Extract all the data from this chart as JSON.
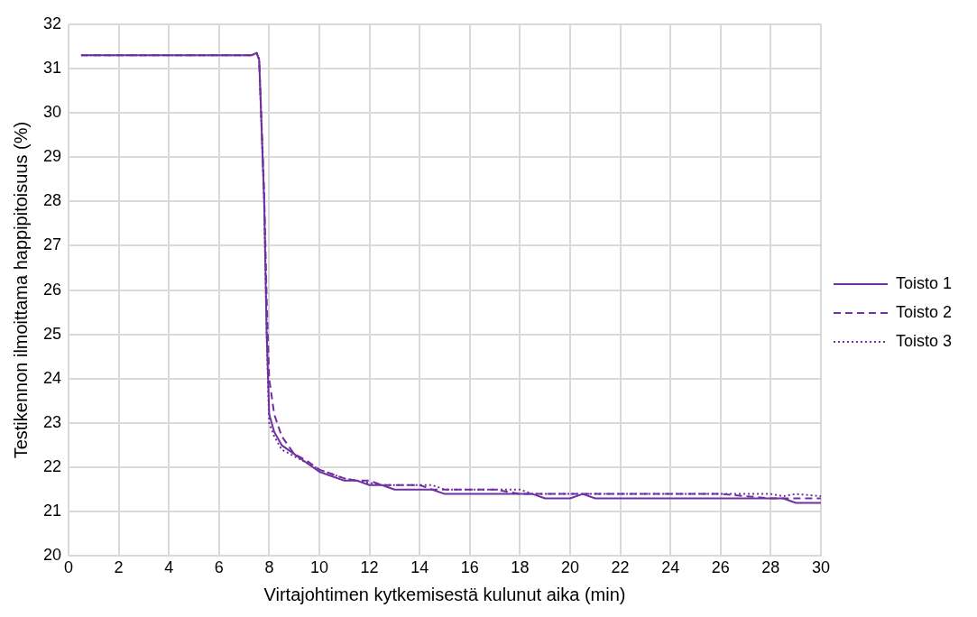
{
  "chart_data": {
    "type": "line",
    "xlabel": "Virtajohtimen kytkemisestä kulunut aika (min)",
    "ylabel": "Testikennon ilmoittama happipitoisuus (%)",
    "x": [
      0.5,
      7,
      7.3,
      7.5,
      7.6,
      7.8,
      7.9,
      8.0,
      8.2,
      8.5,
      9,
      9.5,
      10,
      10.5,
      11,
      11.5,
      12,
      12.5,
      13,
      14,
      14.5,
      15,
      16,
      17,
      18,
      18.5,
      19,
      20,
      20.5,
      21,
      22,
      24,
      26,
      28,
      28.5,
      29,
      30
    ],
    "series": [
      {
        "name": "Toisto 1",
        "color": "#7030a0",
        "line_style": "solid",
        "values": [
          31.3,
          31.3,
          31.3,
          31.35,
          31.2,
          28,
          25,
          23.2,
          22.8,
          22.5,
          22.3,
          22.1,
          21.9,
          21.8,
          21.7,
          21.7,
          21.6,
          21.6,
          21.5,
          21.5,
          21.5,
          21.4,
          21.4,
          21.4,
          21.4,
          21.4,
          21.3,
          21.3,
          21.4,
          21.3,
          21.3,
          21.3,
          21.3,
          21.3,
          21.3,
          21.2,
          21.2
        ]
      },
      {
        "name": "Toisto 2",
        "color": "#7030a0",
        "line_style": "dashed",
        "values": [
          31.3,
          31.3,
          31.3,
          31.35,
          31.2,
          28.2,
          25.8,
          24,
          23.2,
          22.7,
          22.3,
          22.15,
          21.95,
          21.85,
          21.75,
          21.7,
          21.7,
          21.6,
          21.6,
          21.6,
          21.5,
          21.5,
          21.5,
          21.5,
          21.4,
          21.4,
          21.4,
          21.4,
          21.4,
          21.4,
          21.4,
          21.4,
          21.4,
          21.3,
          21.3,
          21.3,
          21.3
        ]
      },
      {
        "name": "Toisto 3",
        "color": "#7030a0",
        "line_style": "dotted",
        "values": [
          31.3,
          31.3,
          31.3,
          31.35,
          31.2,
          28,
          25,
          23,
          22.7,
          22.4,
          22.25,
          22.1,
          21.95,
          21.85,
          21.75,
          21.7,
          21.65,
          21.6,
          21.6,
          21.6,
          21.6,
          21.5,
          21.5,
          21.5,
          21.5,
          21.4,
          21.4,
          21.4,
          21.4,
          21.4,
          21.4,
          21.4,
          21.4,
          21.4,
          21.35,
          21.4,
          21.35
        ]
      }
    ],
    "xlim": [
      0,
      30
    ],
    "xticks": [
      0,
      2,
      4,
      6,
      8,
      10,
      12,
      14,
      16,
      18,
      20,
      22,
      24,
      26,
      28,
      30
    ],
    "ylim": [
      20,
      32
    ],
    "yticks": [
      20,
      21,
      22,
      23,
      24,
      25,
      26,
      27,
      28,
      29,
      30,
      31,
      32
    ],
    "grid": true,
    "legend": "right",
    "marker": "none"
  }
}
